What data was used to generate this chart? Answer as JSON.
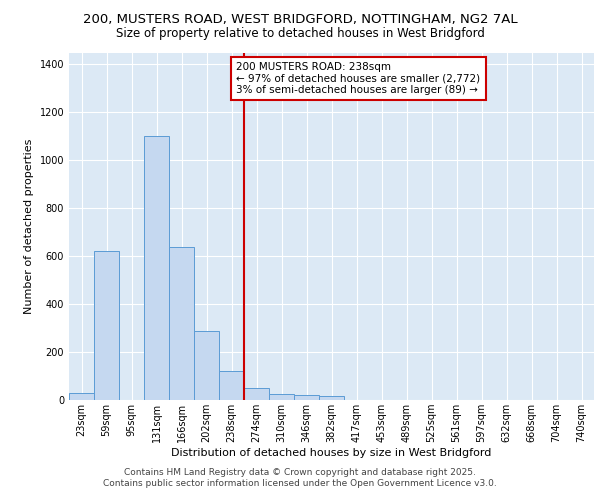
{
  "title_line1": "200, MUSTERS ROAD, WEST BRIDGFORD, NOTTINGHAM, NG2 7AL",
  "title_line2": "Size of property relative to detached houses in West Bridgford",
  "xlabel": "Distribution of detached houses by size in West Bridgford",
  "ylabel": "Number of detached properties",
  "bar_values": [
    30,
    620,
    0,
    1100,
    640,
    290,
    120,
    50,
    25,
    20,
    15,
    0,
    0,
    0,
    0,
    0,
    0,
    0,
    0,
    0,
    0
  ],
  "bar_labels": [
    "23sqm",
    "59sqm",
    "95sqm",
    "131sqm",
    "166sqm",
    "202sqm",
    "238sqm",
    "274sqm",
    "310sqm",
    "346sqm",
    "382sqm",
    "417sqm",
    "453sqm",
    "489sqm",
    "525sqm",
    "561sqm",
    "597sqm",
    "632sqm",
    "668sqm",
    "704sqm",
    "740sqm"
  ],
  "bar_color": "#c5d8f0",
  "bar_edge_color": "#5b9bd5",
  "red_line_x": 6.5,
  "annotation_text": "200 MUSTERS ROAD: 238sqm\n← 97% of detached houses are smaller (2,772)\n3% of semi-detached houses are larger (89) →",
  "annotation_box_color": "#ffffff",
  "annotation_box_edge": "#cc0000",
  "ylim": [
    0,
    1450
  ],
  "yticks": [
    0,
    200,
    400,
    600,
    800,
    1000,
    1200,
    1400
  ],
  "bg_color": "#dce9f5",
  "grid_color": "#ffffff",
  "footer_line1": "Contains HM Land Registry data © Crown copyright and database right 2025.",
  "footer_line2": "Contains public sector information licensed under the Open Government Licence v3.0.",
  "title_fontsize": 9.5,
  "subtitle_fontsize": 8.5,
  "axis_label_fontsize": 8,
  "tick_fontsize": 7,
  "annotation_fontsize": 7.5,
  "footer_fontsize": 6.5
}
